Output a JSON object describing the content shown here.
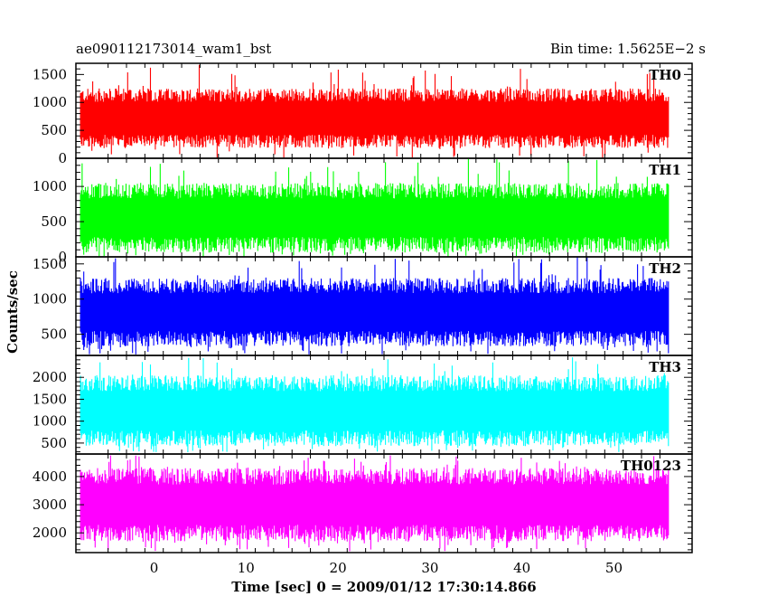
{
  "header": {
    "left": "ae090112173014_wam1_bst",
    "right": "Bin time: 1.5625E−2 s"
  },
  "chart_data": {
    "type": "line",
    "title": "ae090112173014_wam1_bst",
    "subtitle": "Bin time: 1.5625E−2 s",
    "xlabel": "Time [sec] 0 = 2009/01/12 17:30:14.866",
    "ylabel": "Counts/sec",
    "xlim": [
      -8.5,
      58.5
    ],
    "data_range": [
      -8.0,
      56.0
    ],
    "bin_time": 0.015625,
    "xticks": [
      "0",
      "10",
      "20",
      "30",
      "40",
      "50"
    ],
    "grid": false,
    "panels": [
      {
        "name": "TH0",
        "color": "#ff0000",
        "ylim": [
          0,
          1700
        ],
        "yticks": [
          0,
          500,
          1000,
          1500
        ],
        "typical_range": [
          180,
          1250
        ],
        "peak": 1690,
        "min": 0
      },
      {
        "name": "TH1",
        "color": "#00ff00",
        "ylim": [
          0,
          1400
        ],
        "yticks": [
          0,
          500,
          1000
        ],
        "typical_range": [
          60,
          1050
        ],
        "peak": 1390,
        "min": 0
      },
      {
        "name": "TH2",
        "color": "#0000ff",
        "ylim": [
          200,
          1600
        ],
        "yticks": [
          500,
          1000,
          1500
        ],
        "typical_range": [
          330,
          1300
        ],
        "peak": 1600,
        "min": 210
      },
      {
        "name": "TH3",
        "color": "#00ffff",
        "ylim": [
          250,
          2500
        ],
        "yticks": [
          500,
          1000,
          1500,
          2000
        ],
        "typical_range": [
          420,
          2050
        ],
        "peak": 2480,
        "min": 280
      },
      {
        "name": "TH0123",
        "color": "#ff00ff",
        "ylim": [
          1300,
          4800
        ],
        "yticks": [
          2000,
          3000,
          4000
        ],
        "typical_range": [
          1700,
          4300
        ],
        "peak": 4750,
        "min": 1350
      }
    ]
  }
}
